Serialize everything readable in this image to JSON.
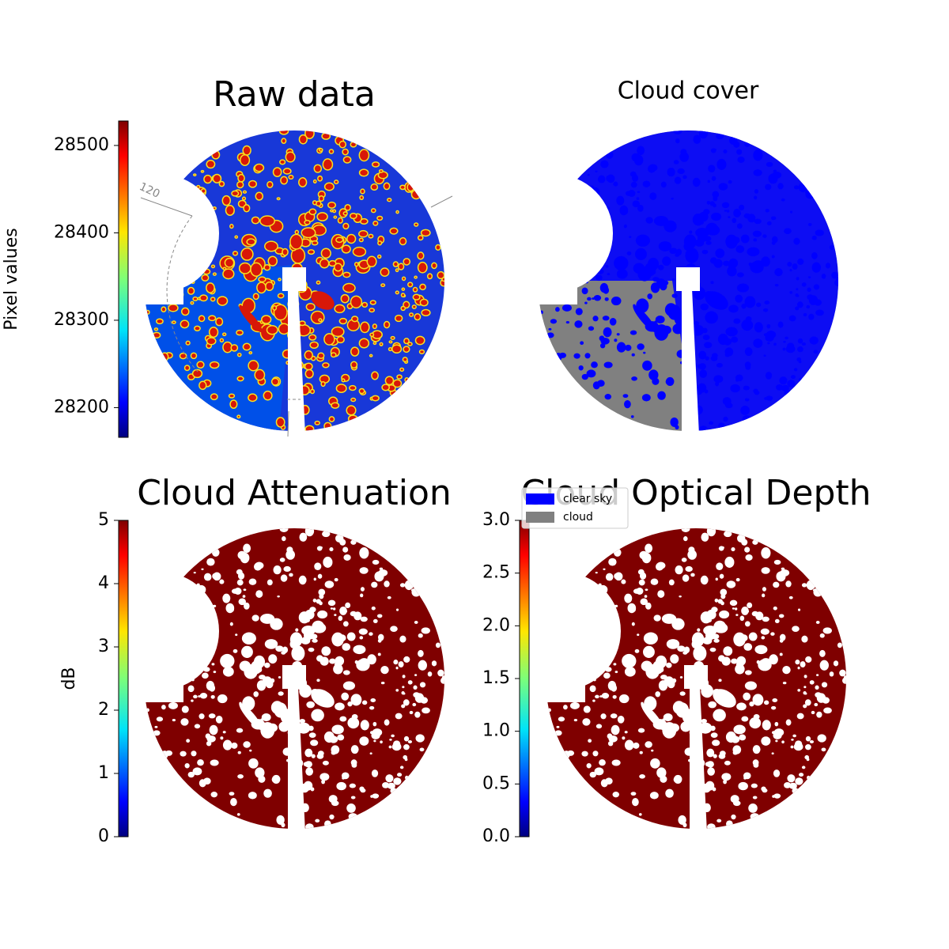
{
  "chart_data": [
    {
      "type": "image",
      "title": "Raw data",
      "colorbar_label": "Pixel values",
      "colormap": "jet",
      "ylim": [
        28166,
        28528
      ],
      "yticks": [
        28200,
        28300,
        28400,
        28500
      ],
      "annotations": [
        "120"
      ]
    },
    {
      "type": "image",
      "title": "Cloud cover",
      "series": [
        {
          "name": "clear sky",
          "color": "#0000ff"
        },
        {
          "name": "cloud",
          "color": "#808080"
        }
      ]
    },
    {
      "type": "image",
      "title": "Cloud Attenuation",
      "colorbar_label": "dB",
      "colormap": "jet",
      "ylim": [
        0,
        5
      ],
      "yticks": [
        0,
        1,
        2,
        3,
        4,
        5
      ]
    },
    {
      "type": "image",
      "title": "Cloud Optical Depth",
      "colormap": "jet",
      "ylim": [
        0,
        3
      ],
      "yticks": [
        {
          "value": 0,
          "label": "0.0"
        },
        {
          "value": 0.5,
          "label": "0.5"
        },
        {
          "value": 1,
          "label": "1.0"
        },
        {
          "value": 1.5,
          "label": "1.5"
        },
        {
          "value": 2,
          "label": "2.0"
        },
        {
          "value": 2.5,
          "label": "2.5"
        },
        {
          "value": 3,
          "label": "3.0"
        }
      ]
    }
  ]
}
